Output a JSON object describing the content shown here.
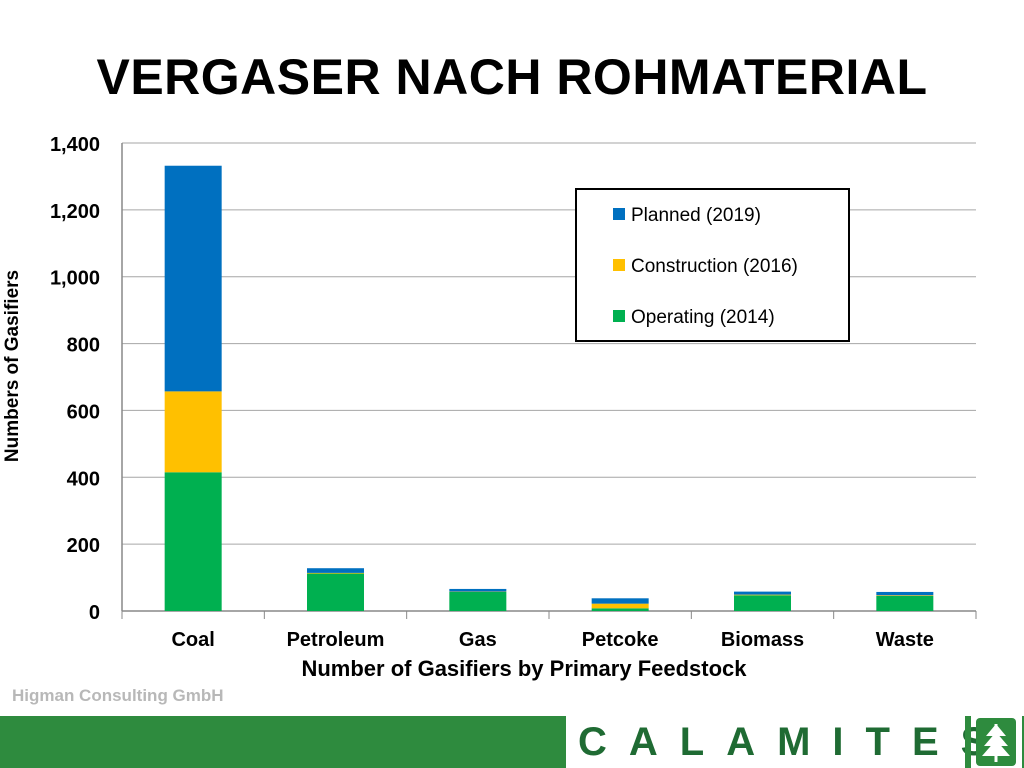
{
  "slide": {
    "title": "VERGASER NACH ROHMATERIAL",
    "credit": "Higman Consulting GmbH",
    "brand": "CALAMITES",
    "brand_icon": "tree-icon",
    "brand_color": "#2e8b3e"
  },
  "chart_data": {
    "type": "bar",
    "stacked": true,
    "categories": [
      "Coal",
      "Petroleum",
      "Gas",
      "Petcoke",
      "Biomass",
      "Waste"
    ],
    "series": [
      {
        "name": "Operating (2014)",
        "color": "#00b050",
        "values": [
          415,
          112,
          57,
          8,
          47,
          45
        ]
      },
      {
        "name": "Construction (2016)",
        "color": "#ffc000",
        "values": [
          242,
          2,
          1,
          14,
          2,
          2
        ]
      },
      {
        "name": "Planned (2019)",
        "color": "#0070c0",
        "values": [
          675,
          14,
          8,
          16,
          9,
          10
        ]
      }
    ],
    "title": "",
    "xlabel": "Number of Gasifiers by Primary Feedstock",
    "ylabel": "Numbers of Gasifiers",
    "ylim": [
      0,
      1400
    ],
    "yticks": [
      "0",
      "200",
      "400",
      "600",
      "800",
      "1,000",
      "1,200",
      "1,400"
    ],
    "legend": {
      "placement": "top-right",
      "entries": [
        "Planned (2019)",
        "Construction (2016)",
        "Operating (2014)"
      ]
    },
    "grid": true
  }
}
